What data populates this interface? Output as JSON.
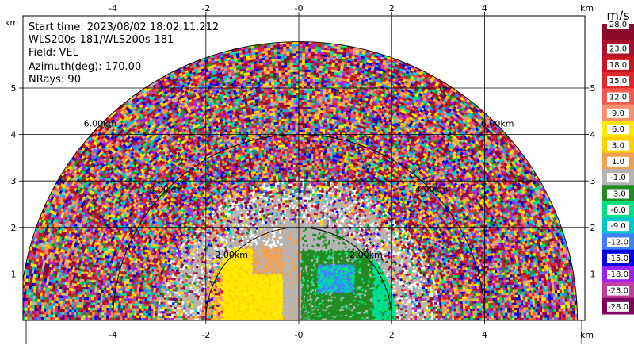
{
  "chart_data": {
    "type": "heatmap",
    "description_fields": {
      "start_time": "Start time: 2023/08/02 18:02:11.212",
      "instrument": "WLS200s-181/WLS200s-181",
      "field": "Field: VEL",
      "azimuth": "Azimuth(deg): 170.00",
      "nrays": "NRays: 90"
    },
    "x_unit": "km",
    "y_unit": "km",
    "xlim": [
      -6,
      6
    ],
    "ylim": [
      0,
      6
    ],
    "x_ticks_top": [
      "-4",
      "-2",
      "-0",
      "2",
      "4"
    ],
    "x_ticks_bottom": [
      "-4",
      "-2",
      "-0",
      "2",
      "4"
    ],
    "x_tick_values": [
      -4,
      -2,
      0,
      2,
      4
    ],
    "y_ticks": [
      "1",
      "2",
      "3",
      "4",
      "5"
    ],
    "y_tick_values": [
      1,
      2,
      3,
      4,
      5
    ],
    "grid": true,
    "range_rings": [
      {
        "range_km": 2,
        "label": "2.00km"
      },
      {
        "range_km": 4,
        "label": "4.00km"
      },
      {
        "range_km": 6,
        "label": "6.00km"
      }
    ],
    "colorbar": {
      "unit": "m/s",
      "labels": [
        "28.0",
        "23.0",
        "18.0",
        "15.0",
        "12.0",
        "9.0",
        "6.0",
        "3.0",
        "1.0",
        "-1.0",
        "-3.0",
        "-6.0",
        "-9.0",
        "-12.0",
        "-15.0",
        "-18.0",
        "-23.0",
        "-28.0"
      ],
      "colors": [
        "#8b0a2a",
        "#a8102e",
        "#c81420",
        "#e02a2a",
        "#f05a50",
        "#f59070",
        "#ffe800",
        "#ffd000",
        "#f0a050",
        "#b4b4b4",
        "#228b22",
        "#00e080",
        "#00c8c8",
        "#4080ff",
        "#0000e0",
        "#a020f0",
        "#c040a0",
        "#800060"
      ]
    }
  }
}
